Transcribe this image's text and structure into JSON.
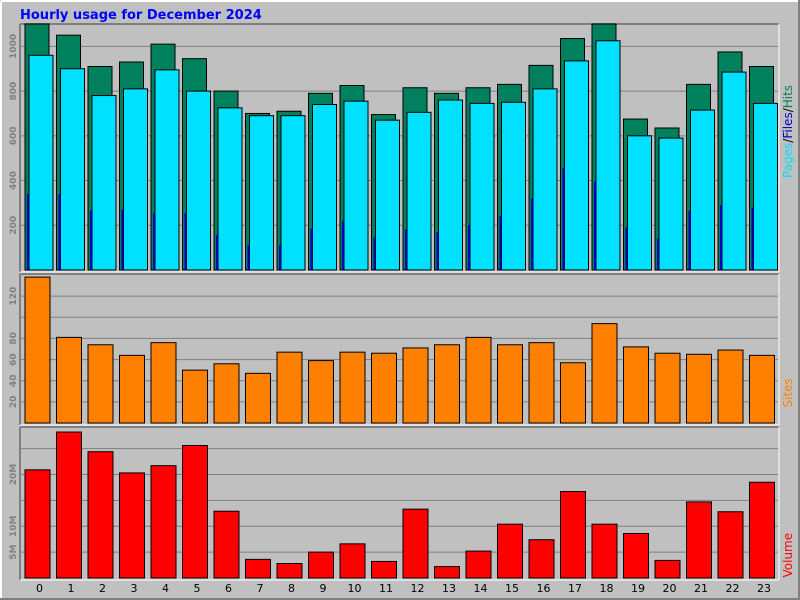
{
  "title": "Hourly usage for December 2024",
  "colors": {
    "background": "#c0c0c0",
    "title_text": "#0000ff",
    "hits": "#00805c",
    "files": "#00e0ff",
    "pages": "#0000c0",
    "sites": "#ff8000",
    "volume": "#ff0000",
    "grid": "#808080"
  },
  "chart_data": [
    {
      "type": "bar",
      "panel": "hits-files-pages",
      "label_parts": [
        "Pages",
        "/",
        "Files",
        "/",
        "Hits"
      ],
      "categories": [
        "0",
        "1",
        "2",
        "3",
        "4",
        "5",
        "6",
        "7",
        "8",
        "9",
        "10",
        "11",
        "12",
        "13",
        "14",
        "15",
        "16",
        "17",
        "18",
        "19",
        "20",
        "21",
        "22",
        "23"
      ],
      "y_ticks": [
        "200",
        "400",
        "600",
        "800",
        "1000"
      ],
      "ylim": [
        0,
        1100
      ],
      "grid": true,
      "series": [
        {
          "name": "Hits",
          "values": [
            1100,
            1050,
            910,
            930,
            1010,
            945,
            800,
            700,
            710,
            790,
            825,
            695,
            815,
            790,
            815,
            830,
            915,
            1035,
            1100,
            675,
            635,
            830,
            975,
            910
          ]
        },
        {
          "name": "Files",
          "values": [
            960,
            900,
            780,
            810,
            895,
            800,
            725,
            690,
            690,
            740,
            755,
            670,
            705,
            760,
            745,
            750,
            810,
            935,
            1025,
            600,
            590,
            715,
            885,
            745
          ]
        },
        {
          "name": "Pages",
          "values": [
            340,
            340,
            265,
            270,
            255,
            255,
            155,
            110,
            110,
            185,
            220,
            145,
            180,
            170,
            200,
            240,
            320,
            455,
            395,
            190,
            140,
            265,
            290,
            280
          ]
        }
      ]
    },
    {
      "type": "bar",
      "panel": "sites",
      "label_parts": [
        "Sites"
      ],
      "categories": [
        "0",
        "1",
        "2",
        "3",
        "4",
        "5",
        "6",
        "7",
        "8",
        "9",
        "10",
        "11",
        "12",
        "13",
        "14",
        "15",
        "16",
        "17",
        "18",
        "19",
        "20",
        "21",
        "22",
        "23"
      ],
      "y_ticks": [
        "20",
        "40",
        "60",
        "80",
        "120"
      ],
      "ylim": [
        0,
        140
      ],
      "grid": true,
      "series": [
        {
          "name": "Sites",
          "values": [
            138,
            81,
            74,
            64,
            76,
            50,
            56,
            47,
            67,
            59,
            67,
            66,
            71,
            74,
            81,
            74,
            76,
            57,
            94,
            72,
            66,
            65,
            69,
            64
          ]
        }
      ]
    },
    {
      "type": "bar",
      "panel": "volume",
      "label_parts": [
        "Volume"
      ],
      "categories": [
        "0",
        "1",
        "2",
        "3",
        "4",
        "5",
        "6",
        "7",
        "8",
        "9",
        "10",
        "11",
        "12",
        "13",
        "14",
        "15",
        "16",
        "17",
        "18",
        "19",
        "20",
        "21",
        "22",
        "23"
      ],
      "y_ticks": [
        "5M",
        "10M",
        "20M"
      ],
      "ylim": [
        0,
        28.4
      ],
      "grid": true,
      "series": [
        {
          "name": "Volume",
          "values": [
            20.9,
            28.2,
            24.4,
            20.3,
            21.7,
            25.6,
            12.9,
            3.6,
            2.8,
            5.0,
            6.6,
            3.2,
            13.3,
            2.2,
            5.2,
            10.4,
            7.4,
            16.7,
            10.4,
            8.6,
            3.4,
            14.7,
            12.8,
            18.5
          ]
        }
      ]
    }
  ]
}
